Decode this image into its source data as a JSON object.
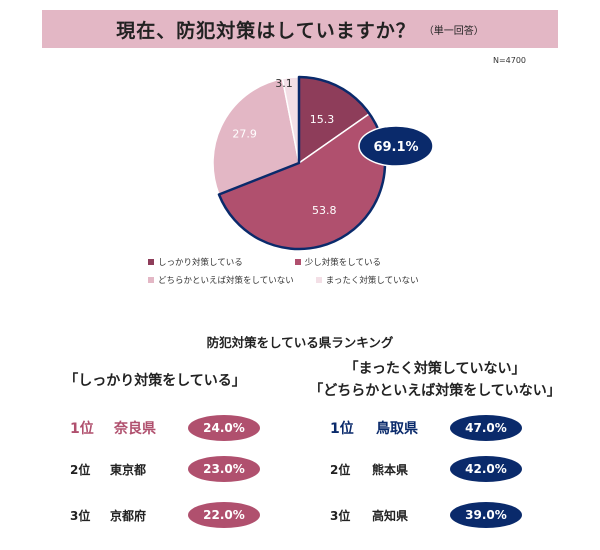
{
  "header": {
    "title": "現在、防犯対策はしていますか？",
    "note": "（単一回答）",
    "sample": "N=4700"
  },
  "chart_data": {
    "type": "pie",
    "title": "現在、防犯対策はしていますか？",
    "slices": [
      {
        "label": "しっかり対策している",
        "value": 15.3,
        "color": "#8e3d5a"
      },
      {
        "label": "少し対策をしている",
        "value": 53.8,
        "color": "#b0506e"
      },
      {
        "label": "どちらかといえば対策をしていない",
        "value": 27.9,
        "color": "#e3b7c5"
      },
      {
        "label": "まったく対策していない",
        "value": 3.1,
        "color": "#f3dfe6"
      }
    ],
    "callout": {
      "text": "69.1%",
      "color": "#0a2a6b"
    },
    "legend_position": "bottom"
  },
  "ranking": {
    "title": "防犯対策をしている県ランキング",
    "left": {
      "category": "「しっかり対策をしている」",
      "color": "#b0506e",
      "items": [
        {
          "rank": "1位",
          "prefecture": "奈良県",
          "value": "24.0%"
        },
        {
          "rank": "2位",
          "prefecture": "東京都",
          "value": "23.0%"
        },
        {
          "rank": "3位",
          "prefecture": "京都府",
          "value": "22.0%"
        }
      ]
    },
    "right": {
      "category_line1": "「まったく対策していない」",
      "category_line2": "「どちらかといえば対策をしていない」",
      "color": "#0a2a6b",
      "items": [
        {
          "rank": "1位",
          "prefecture": "鳥取県",
          "value": "47.0%"
        },
        {
          "rank": "2位",
          "prefecture": "熊本県",
          "value": "42.0%"
        },
        {
          "rank": "3位",
          "prefecture": "高知県",
          "value": "39.0%"
        }
      ]
    }
  }
}
